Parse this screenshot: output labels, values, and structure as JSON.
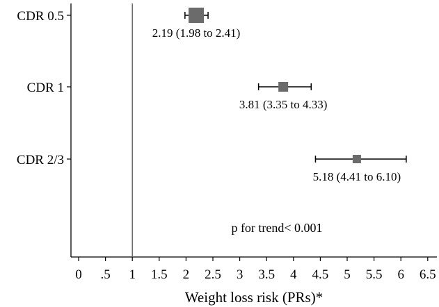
{
  "chart_data": {
    "type": "forest",
    "xlabel": "Weight loss risk (PRs)*",
    "ylabel": "",
    "xlim": [
      -0.2,
      6.55
    ],
    "xticks": [
      "0",
      ".5",
      "1",
      "1.5",
      "2",
      "2.5",
      "3",
      "3.5",
      "4",
      "4.5",
      "5",
      "5.5",
      "6",
      "6.5"
    ],
    "reference_line": 1,
    "grid": false,
    "rows": [
      {
        "label": "CDR 0.5",
        "estimate": 2.19,
        "lower": 1.98,
        "upper": 2.41,
        "text": "2.19 (1.98 to 2.41)"
      },
      {
        "label": "CDR 1",
        "estimate": 3.81,
        "lower": 3.35,
        "upper": 4.33,
        "text": "3.81 (3.35 to 4.33)"
      },
      {
        "label": "CDR 2/3",
        "estimate": 5.18,
        "lower": 4.41,
        "upper": 6.1,
        "text": "5.18 (4.41 to 6.10)"
      }
    ],
    "annotation": "p for trend< 0.001",
    "colors": {
      "marker": "#6b6b6b",
      "line": "#000000",
      "reference": "#555555"
    }
  }
}
